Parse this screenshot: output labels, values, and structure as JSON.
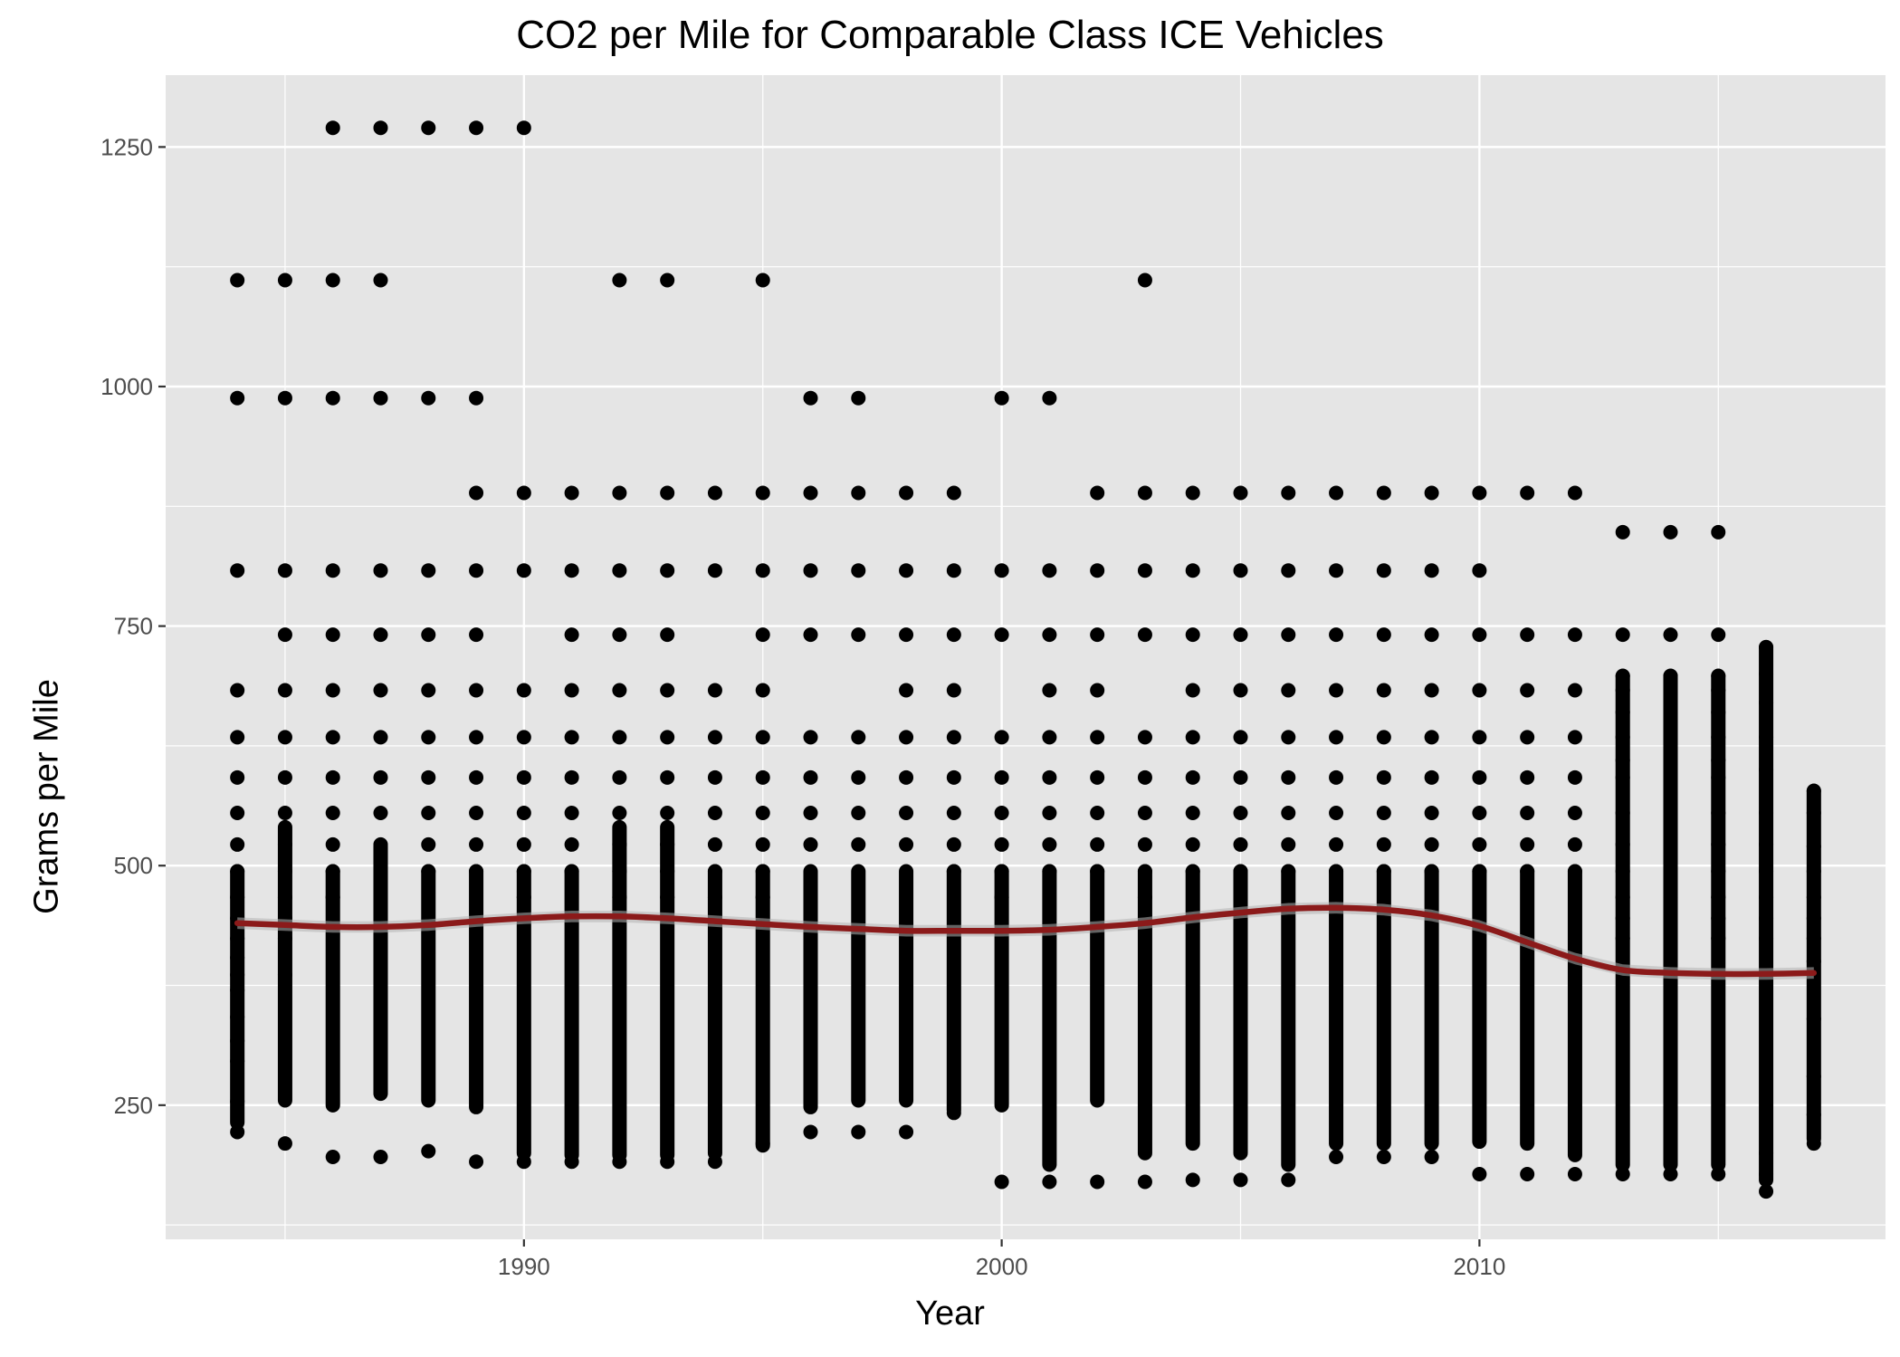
{
  "chart_data": {
    "type": "scatter",
    "title": "CO2 per Mile for Comparable Class ICE Vehicles",
    "xlabel": "Year",
    "ylabel": "Grams per Mile",
    "xlim": [
      1982.5,
      2018.5
    ],
    "ylim": [
      110,
      1325
    ],
    "x_ticks": [
      1990,
      2000,
      2010
    ],
    "y_ticks": [
      250,
      500,
      750,
      1000,
      1250
    ],
    "grid": true,
    "legend": "none",
    "colors": {
      "panel": "#e5e5e5",
      "grid": "#ffffff",
      "points": "#000000",
      "smooth": "#8b1a1a",
      "band": "#b5b5b5"
    },
    "series": [
      {
        "kind": "points",
        "x": [
          1984,
          1984,
          1984,
          1984,
          1984,
          1984,
          1984,
          1984,
          1984,
          1984,
          1984,
          1984,
          1984,
          1984,
          1984,
          1984,
          1984,
          1984,
          1984,
          1984,
          1985,
          1985,
          1985,
          1985,
          1985,
          1985,
          1985,
          1985,
          1985,
          1985,
          1985,
          1985,
          1985,
          1985,
          1985,
          1986,
          1986,
          1986,
          1986,
          1986,
          1986,
          1986,
          1986,
          1986,
          1986,
          1986,
          1986,
          1986,
          1987,
          1987,
          1987,
          1987,
          1987,
          1987,
          1987,
          1987,
          1987,
          1987,
          1987,
          1987,
          1988,
          1988,
          1988,
          1988,
          1988,
          1988,
          1988,
          1988,
          1988,
          1988,
          1988,
          1989,
          1989,
          1989,
          1989,
          1989,
          1989,
          1989,
          1989,
          1989,
          1989,
          1989,
          1989,
          1990,
          1990,
          1990,
          1990,
          1990,
          1990,
          1990,
          1990,
          1990,
          1990,
          1990,
          1990,
          1991,
          1991,
          1991,
          1991,
          1991,
          1991,
          1991,
          1991,
          1991,
          1991,
          1992,
          1992,
          1992,
          1992,
          1992,
          1992,
          1992,
          1992,
          1992,
          1992,
          1992,
          1992,
          1993,
          1993,
          1993,
          1993,
          1993,
          1993,
          1993,
          1993,
          1993,
          1993,
          1993,
          1993,
          1994,
          1994,
          1994,
          1994,
          1994,
          1994,
          1994,
          1994,
          1994,
          1994,
          1995,
          1995,
          1995,
          1995,
          1995,
          1995,
          1995,
          1995,
          1995,
          1995,
          1995,
          1995,
          1996,
          1996,
          1996,
          1996,
          1996,
          1996,
          1996,
          1996,
          1996,
          1997,
          1997,
          1997,
          1997,
          1997,
          1997,
          1997,
          1997,
          1997,
          1998,
          1998,
          1998,
          1998,
          1998,
          1998,
          1998,
          1998,
          1998,
          1999,
          1999,
          1999,
          1999,
          1999,
          1999,
          1999,
          1999,
          1999,
          1999,
          2000,
          2000,
          2000,
          2000,
          2000,
          2000,
          2000,
          2000,
          2000,
          2000,
          2001,
          2001,
          2001,
          2001,
          2001,
          2001,
          2001,
          2001,
          2001,
          2001,
          2002,
          2002,
          2002,
          2002,
          2002,
          2002,
          2002,
          2002,
          2002,
          2002,
          2003,
          2003,
          2003,
          2003,
          2003,
          2003,
          2003,
          2003,
          2003,
          2003,
          2003,
          2003,
          2004,
          2004,
          2004,
          2004,
          2004,
          2004,
          2004,
          2004,
          2004,
          2004,
          2005,
          2005,
          2005,
          2005,
          2005,
          2005,
          2005,
          2005,
          2005,
          2005,
          2006,
          2006,
          2006,
          2006,
          2006,
          2006,
          2006,
          2006,
          2006,
          2006,
          2007,
          2007,
          2007,
          2007,
          2007,
          2007,
          2007,
          2007,
          2007,
          2007,
          2008,
          2008,
          2008,
          2008,
          2008,
          2008,
          2008,
          2008,
          2008,
          2008,
          2009,
          2009,
          2009,
          2009,
          2009,
          2009,
          2009,
          2009,
          2009,
          2009,
          2010,
          2010,
          2010,
          2010,
          2010,
          2010,
          2010,
          2010,
          2010,
          2010,
          2011,
          2011,
          2011,
          2011,
          2011,
          2011,
          2011,
          2011,
          2011,
          2012,
          2012,
          2012,
          2012,
          2012,
          2012,
          2012,
          2012,
          2012,
          2013,
          2013,
          2013,
          2013,
          2013,
          2013,
          2013,
          2013,
          2013,
          2013,
          2013,
          2013,
          2013,
          2013,
          2013,
          2014,
          2014,
          2014,
          2014,
          2014,
          2014,
          2014,
          2014,
          2014,
          2014,
          2014,
          2014,
          2014,
          2014,
          2014,
          2015,
          2015,
          2015,
          2015,
          2015,
          2015,
          2015,
          2015,
          2015,
          2015,
          2015,
          2015,
          2015,
          2015,
          2015,
          2016,
          2016,
          2016,
          2016,
          2016,
          2016,
          2016,
          2016,
          2016,
          2016,
          2016,
          2016,
          2016,
          2016,
          2017,
          2017,
          2017,
          2017,
          2017,
          2017,
          2017,
          2017,
          2017,
          2017,
          2017,
          2017
        ],
        "y": [
          1111,
          988,
          808,
          683,
          634,
          592,
          555,
          522,
          494,
          467,
          445,
          424,
          404,
          386,
          370,
          342,
          317,
          296,
          254,
          222,
          1111,
          988,
          808,
          741,
          683,
          634,
          592,
          555,
          522,
          494,
          467,
          445,
          424,
          386,
          210,
          1270,
          1111,
          988,
          808,
          741,
          683,
          634,
          592,
          555,
          522,
          494,
          467,
          196,
          1270,
          1111,
          988,
          808,
          741,
          683,
          634,
          592,
          555,
          522,
          494,
          196,
          1270,
          988,
          808,
          741,
          683,
          634,
          592,
          555,
          522,
          494,
          202,
          1270,
          988,
          889,
          808,
          741,
          683,
          634,
          592,
          555,
          522,
          494,
          191,
          1270,
          889,
          808,
          683,
          634,
          592,
          555,
          522,
          494,
          467,
          445,
          191,
          889,
          808,
          741,
          683,
          634,
          592,
          555,
          522,
          494,
          191,
          1111,
          889,
          808,
          741,
          683,
          634,
          592,
          555,
          522,
          494,
          467,
          191,
          1111,
          889,
          808,
          741,
          683,
          634,
          592,
          555,
          522,
          494,
          467,
          191,
          889,
          808,
          683,
          634,
          592,
          555,
          522,
          494,
          467,
          191,
          1111,
          889,
          808,
          741,
          683,
          634,
          592,
          555,
          522,
          494,
          467,
          210,
          988,
          889,
          808,
          741,
          634,
          592,
          555,
          522,
          222,
          988,
          889,
          808,
          741,
          634,
          592,
          555,
          522,
          222,
          889,
          808,
          741,
          683,
          634,
          592,
          555,
          522,
          222,
          889,
          808,
          741,
          683,
          634,
          592,
          555,
          522,
          494,
          242,
          988,
          808,
          741,
          634,
          592,
          555,
          522,
          494,
          467,
          170,
          988,
          808,
          741,
          683,
          634,
          592,
          555,
          522,
          494,
          170,
          889,
          808,
          741,
          683,
          634,
          592,
          555,
          522,
          494,
          170,
          1111,
          889,
          808,
          741,
          634,
          592,
          555,
          522,
          494,
          467,
          445,
          170,
          889,
          808,
          741,
          683,
          634,
          592,
          555,
          522,
          494,
          172,
          889,
          808,
          741,
          683,
          634,
          592,
          555,
          522,
          494,
          172,
          889,
          808,
          741,
          683,
          634,
          592,
          555,
          522,
          494,
          172,
          889,
          808,
          741,
          683,
          634,
          592,
          555,
          522,
          494,
          196,
          889,
          808,
          741,
          683,
          634,
          592,
          555,
          522,
          494,
          196,
          889,
          808,
          741,
          683,
          634,
          592,
          555,
          522,
          494,
          196,
          889,
          808,
          741,
          683,
          634,
          592,
          555,
          522,
          494,
          178,
          889,
          741,
          683,
          634,
          592,
          555,
          522,
          494,
          178,
          889,
          741,
          683,
          634,
          592,
          555,
          522,
          494,
          178,
          848,
          741,
          698,
          683,
          660,
          634,
          610,
          592,
          555,
          522,
          494,
          467,
          445,
          424,
          178,
          848,
          741,
          698,
          683,
          660,
          634,
          610,
          592,
          555,
          522,
          494,
          467,
          445,
          424,
          178,
          848,
          741,
          698,
          683,
          660,
          634,
          610,
          592,
          555,
          522,
          494,
          467,
          445,
          424,
          178,
          728,
          700,
          670,
          634,
          600,
          555,
          522,
          494,
          467,
          445,
          424,
          200,
          178,
          160,
          578,
          555,
          520,
          494,
          467,
          445,
          424,
          400,
          340,
          280,
          240,
          210
        ]
      },
      {
        "kind": "strip",
        "x": [
          1984,
          1985,
          1986,
          1987,
          1988,
          1989,
          1990,
          1991,
          1992,
          1993,
          1994,
          1995,
          1996,
          1997,
          1998,
          1999,
          2000,
          2001,
          2002,
          2003,
          2004,
          2005,
          2006,
          2007,
          2008,
          2009,
          2010,
          2011,
          2012,
          2013,
          2014,
          2015,
          2016,
          2017
        ],
        "low": [
          232,
          255,
          250,
          262,
          255,
          248,
          200,
          198,
          198,
          198,
          200,
          208,
          248,
          255,
          255,
          245,
          250,
          188,
          255,
          200,
          210,
          200,
          188,
          210,
          210,
          210,
          212,
          210,
          198,
          188,
          188,
          188,
          172,
          215
        ],
        "high": [
          494,
          540,
          494,
          520,
          494,
          494,
          494,
          494,
          540,
          540,
          494,
          494,
          494,
          494,
          494,
          494,
          494,
          494,
          494,
          494,
          494,
          494,
          494,
          494,
          494,
          494,
          494,
          494,
          494,
          698,
          698,
          698,
          728,
          578
        ]
      },
      {
        "kind": "smooth",
        "x": [
          1984,
          1985,
          1986,
          1987,
          1988,
          1989,
          1990,
          1991,
          1992,
          1993,
          1994,
          1995,
          1996,
          1997,
          1998,
          1999,
          2000,
          2001,
          2002,
          2003,
          2004,
          2005,
          2006,
          2007,
          2008,
          2009,
          2010,
          2011,
          2012,
          2013,
          2014,
          2015,
          2016,
          2017
        ],
        "y": [
          440,
          438,
          436,
          436,
          438,
          442,
          445,
          447,
          447,
          445,
          442,
          439,
          436,
          434,
          432,
          432,
          432,
          433,
          436,
          440,
          446,
          451,
          455,
          456,
          454,
          448,
          437,
          420,
          403,
          391,
          388,
          387,
          387,
          388
        ],
        "band": 6
      }
    ]
  }
}
